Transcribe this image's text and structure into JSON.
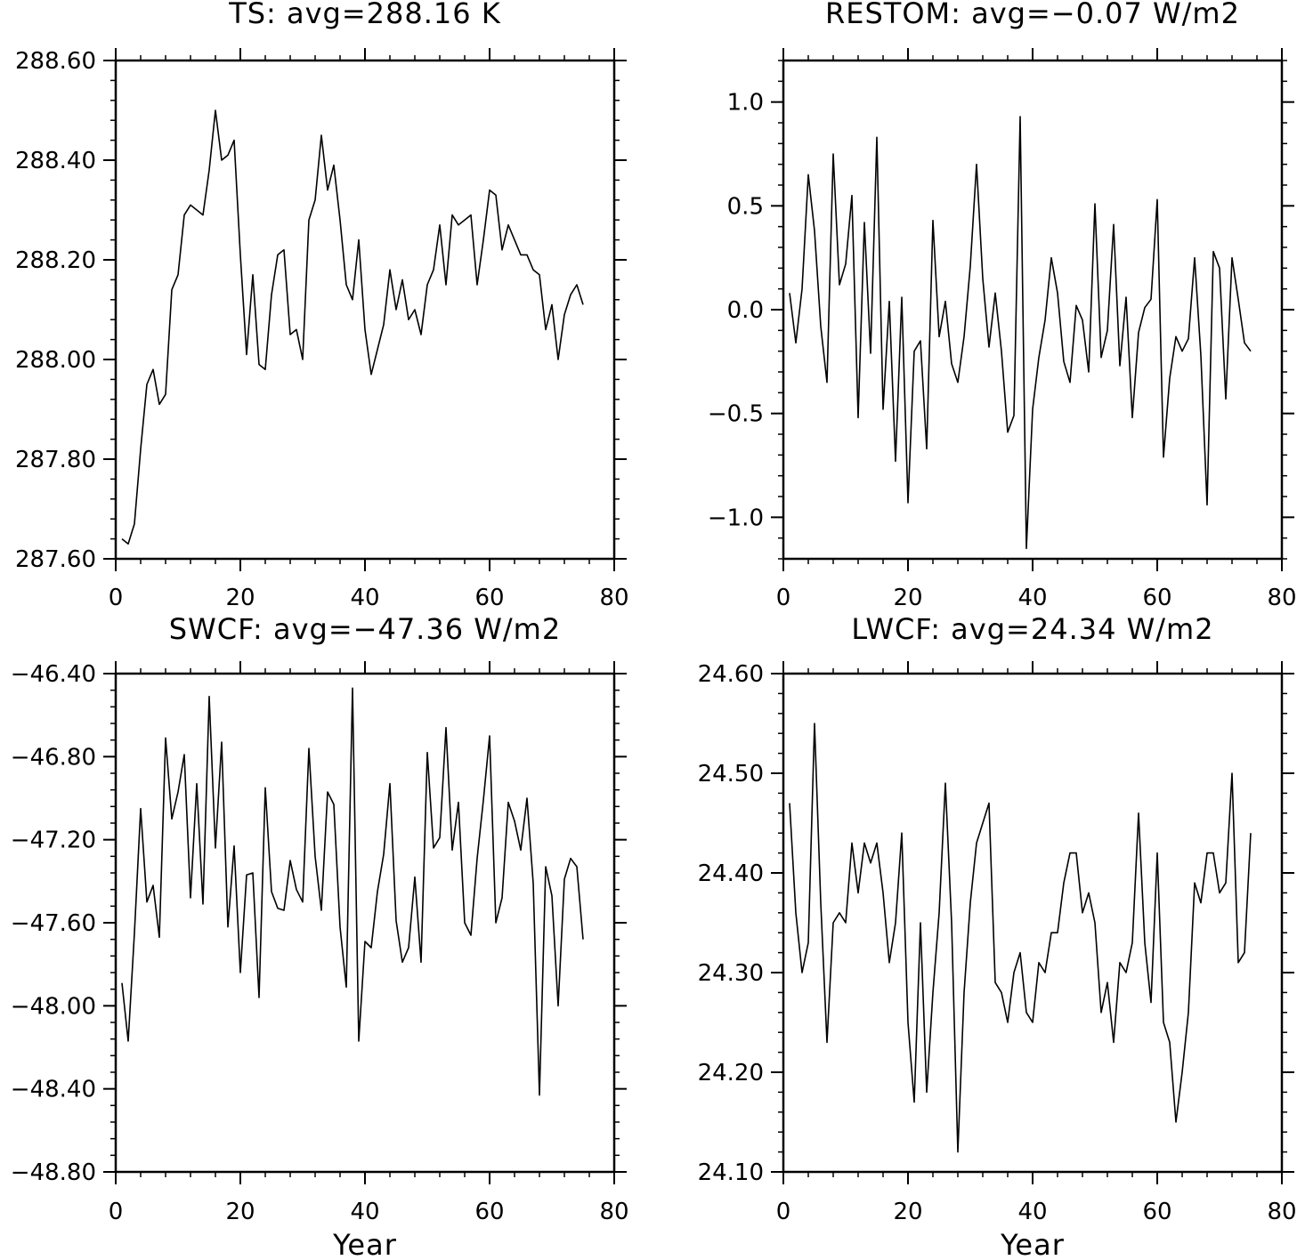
{
  "chart_data": [
    {
      "type": "line",
      "title": "TS: avg=288.16 K",
      "xlabel": "",
      "ylabel": "",
      "xlim": [
        0,
        80
      ],
      "ylim": [
        287.6,
        288.6
      ],
      "x_ticks": [
        0,
        20,
        40,
        60,
        80
      ],
      "x_tick_labels": [
        "0",
        "20",
        "40",
        "60",
        "80"
      ],
      "y_ticks": [
        287.6,
        287.8,
        288.0,
        288.2,
        288.4,
        288.6
      ],
      "y_tick_labels": [
        "287.60",
        "287.80",
        "288.00",
        "288.20",
        "288.40",
        "288.60"
      ],
      "grid": false,
      "series": [
        {
          "x": [
            1,
            2,
            3,
            4,
            5,
            6,
            7,
            8,
            9,
            10,
            11,
            12,
            13,
            14,
            15,
            16,
            17,
            18,
            19,
            20,
            21,
            22,
            23,
            24,
            25,
            26,
            27,
            28,
            29,
            30,
            31,
            32,
            33,
            34,
            35,
            36,
            37,
            38,
            39,
            40,
            41,
            42,
            43,
            44,
            45,
            46,
            47,
            48,
            49,
            50,
            51,
            52,
            53,
            54,
            55,
            56,
            57,
            58,
            59,
            60,
            61,
            62,
            63,
            64,
            65,
            66,
            67,
            68,
            69,
            70,
            71,
            72,
            73,
            74,
            75
          ],
          "values": [
            287.64,
            287.63,
            287.67,
            287.82,
            287.95,
            287.98,
            287.91,
            287.93,
            288.14,
            288.17,
            288.29,
            288.31,
            288.3,
            288.29,
            288.38,
            288.5,
            288.4,
            288.41,
            288.44,
            288.21,
            288.01,
            288.17,
            287.99,
            287.98,
            288.13,
            288.21,
            288.22,
            288.05,
            288.06,
            288.0,
            288.28,
            288.32,
            288.45,
            288.34,
            288.39,
            288.28,
            288.15,
            288.12,
            288.24,
            288.06,
            287.97,
            288.02,
            288.07,
            288.18,
            288.1,
            288.16,
            288.08,
            288.1,
            288.05,
            288.15,
            288.18,
            288.27,
            288.15,
            288.29,
            288.27,
            288.28,
            288.29,
            288.15,
            288.24,
            288.34,
            288.33,
            288.22,
            288.27,
            288.24,
            288.21,
            288.21,
            288.18,
            288.17,
            288.06,
            288.11,
            288.0,
            288.09,
            288.13,
            288.15,
            288.11
          ]
        }
      ]
    },
    {
      "type": "line",
      "title": "RESTOM: avg=−0.07 W/m2",
      "xlabel": "",
      "ylabel": "",
      "xlim": [
        0,
        80
      ],
      "ylim": [
        -1.2,
        1.2
      ],
      "x_ticks": [
        0,
        20,
        40,
        60,
        80
      ],
      "x_tick_labels": [
        "0",
        "20",
        "40",
        "60",
        "80"
      ],
      "y_ticks": [
        -1.0,
        -0.5,
        0.0,
        0.5,
        1.0
      ],
      "y_tick_labels": [
        "−1.0",
        "−0.5",
        "0.0",
        "0.5",
        "1.0"
      ],
      "grid": false,
      "series": [
        {
          "x": [
            1,
            2,
            3,
            4,
            5,
            6,
            7,
            8,
            9,
            10,
            11,
            12,
            13,
            14,
            15,
            16,
            17,
            18,
            19,
            20,
            21,
            22,
            23,
            24,
            25,
            26,
            27,
            28,
            29,
            30,
            31,
            32,
            33,
            34,
            35,
            36,
            37,
            38,
            39,
            40,
            41,
            42,
            43,
            44,
            45,
            46,
            47,
            48,
            49,
            50,
            51,
            52,
            53,
            54,
            55,
            56,
            57,
            58,
            59,
            60,
            61,
            62,
            63,
            64,
            65,
            66,
            67,
            68,
            69,
            70,
            71,
            72,
            73,
            74,
            75
          ],
          "values": [
            0.08,
            -0.16,
            0.1,
            0.65,
            0.38,
            -0.08,
            -0.35,
            0.75,
            0.12,
            0.22,
            0.55,
            -0.52,
            0.42,
            -0.21,
            0.83,
            -0.48,
            0.04,
            -0.73,
            0.06,
            -0.93,
            -0.2,
            -0.15,
            -0.67,
            0.43,
            -0.13,
            0.04,
            -0.26,
            -0.35,
            -0.13,
            0.21,
            0.7,
            0.15,
            -0.18,
            0.08,
            -0.2,
            -0.59,
            -0.51,
            0.93,
            -1.15,
            -0.48,
            -0.23,
            -0.05,
            0.25,
            0.08,
            -0.25,
            -0.35,
            0.02,
            -0.05,
            -0.3,
            0.51,
            -0.23,
            -0.1,
            0.41,
            -0.27,
            0.06,
            -0.52,
            -0.11,
            0.01,
            0.05,
            0.53,
            -0.71,
            -0.33,
            -0.13,
            -0.2,
            -0.14,
            0.25,
            -0.22,
            -0.94,
            0.28,
            0.2,
            -0.43,
            0.25,
            0.05,
            -0.16,
            -0.2
          ]
        }
      ]
    },
    {
      "type": "line",
      "title": "SWCF: avg=−47.36 W/m2",
      "xlabel": "Year",
      "ylabel": "",
      "xlim": [
        0,
        80
      ],
      "ylim": [
        -48.8,
        -46.4
      ],
      "x_ticks": [
        0,
        20,
        40,
        60,
        80
      ],
      "x_tick_labels": [
        "0",
        "20",
        "40",
        "60",
        "80"
      ],
      "y_ticks": [
        -48.8,
        -48.4,
        -48.0,
        -47.6,
        -47.2,
        -46.8,
        -46.4
      ],
      "y_tick_labels": [
        "−48.80",
        "−48.40",
        "−48.00",
        "−47.60",
        "−47.20",
        "−46.80",
        "−46.40"
      ],
      "grid": false,
      "series": [
        {
          "x": [
            1,
            2,
            3,
            4,
            5,
            6,
            7,
            8,
            9,
            10,
            11,
            12,
            13,
            14,
            15,
            16,
            17,
            18,
            19,
            20,
            21,
            22,
            23,
            24,
            25,
            26,
            27,
            28,
            29,
            30,
            31,
            32,
            33,
            34,
            35,
            36,
            37,
            38,
            39,
            40,
            41,
            42,
            43,
            44,
            45,
            46,
            47,
            48,
            49,
            50,
            51,
            52,
            53,
            54,
            55,
            56,
            57,
            58,
            59,
            60,
            61,
            62,
            63,
            64,
            65,
            66,
            67,
            68,
            69,
            70,
            71,
            72,
            73,
            74,
            75
          ],
          "values": [
            -47.89,
            -48.17,
            -47.65,
            -47.05,
            -47.5,
            -47.42,
            -47.67,
            -46.71,
            -47.1,
            -46.97,
            -46.79,
            -47.48,
            -46.93,
            -47.51,
            -46.51,
            -47.24,
            -46.73,
            -47.62,
            -47.23,
            -47.84,
            -47.37,
            -47.36,
            -47.96,
            -46.95,
            -47.45,
            -47.53,
            -47.54,
            -47.3,
            -47.44,
            -47.5,
            -46.76,
            -47.28,
            -47.54,
            -46.97,
            -47.03,
            -47.62,
            -47.91,
            -46.47,
            -48.17,
            -47.69,
            -47.72,
            -47.45,
            -47.27,
            -46.93,
            -47.59,
            -47.79,
            -47.72,
            -47.38,
            -47.79,
            -46.78,
            -47.24,
            -47.19,
            -46.66,
            -47.25,
            -47.02,
            -47.6,
            -47.66,
            -47.29,
            -47.01,
            -46.7,
            -47.6,
            -47.48,
            -47.02,
            -47.11,
            -47.25,
            -47.0,
            -47.41,
            -48.43,
            -47.33,
            -47.47,
            -48.0,
            -47.39,
            -47.29,
            -47.33,
            -47.68
          ]
        }
      ]
    },
    {
      "type": "line",
      "title": "LWCF: avg=24.34 W/m2",
      "xlabel": "Year",
      "ylabel": "",
      "xlim": [
        0,
        80
      ],
      "ylim": [
        24.1,
        24.6
      ],
      "x_ticks": [
        0,
        20,
        40,
        60,
        80
      ],
      "x_tick_labels": [
        "0",
        "20",
        "40",
        "60",
        "80"
      ],
      "y_ticks": [
        24.1,
        24.2,
        24.3,
        24.4,
        24.5,
        24.6
      ],
      "y_tick_labels": [
        "24.10",
        "24.20",
        "24.30",
        "24.40",
        "24.50",
        "24.60"
      ],
      "grid": false,
      "series": [
        {
          "x": [
            1,
            2,
            3,
            4,
            5,
            6,
            7,
            8,
            9,
            10,
            11,
            12,
            13,
            14,
            15,
            16,
            17,
            18,
            19,
            20,
            21,
            22,
            23,
            24,
            25,
            26,
            27,
            28,
            29,
            30,
            31,
            32,
            33,
            34,
            35,
            36,
            37,
            38,
            39,
            40,
            41,
            42,
            43,
            44,
            45,
            46,
            47,
            48,
            49,
            50,
            51,
            52,
            53,
            54,
            55,
            56,
            57,
            58,
            59,
            60,
            61,
            62,
            63,
            64,
            65,
            66,
            67,
            68,
            69,
            70,
            71,
            72,
            73,
            74,
            75
          ],
          "values": [
            24.47,
            24.36,
            24.3,
            24.33,
            24.55,
            24.37,
            24.23,
            24.35,
            24.36,
            24.35,
            24.43,
            24.38,
            24.43,
            24.41,
            24.43,
            24.38,
            24.31,
            24.35,
            24.44,
            24.25,
            24.17,
            24.35,
            24.18,
            24.28,
            24.36,
            24.49,
            24.35,
            24.12,
            24.28,
            24.37,
            24.43,
            24.45,
            24.47,
            24.29,
            24.28,
            24.25,
            24.3,
            24.32,
            24.26,
            24.25,
            24.31,
            24.3,
            24.34,
            24.34,
            24.39,
            24.42,
            24.42,
            24.36,
            24.38,
            24.35,
            24.26,
            24.29,
            24.23,
            24.31,
            24.3,
            24.33,
            24.46,
            24.33,
            24.27,
            24.42,
            24.25,
            24.23,
            24.15,
            24.2,
            24.26,
            24.39,
            24.37,
            24.42,
            24.42,
            24.38,
            24.39,
            24.5,
            24.31,
            24.32,
            24.44
          ]
        }
      ]
    }
  ]
}
